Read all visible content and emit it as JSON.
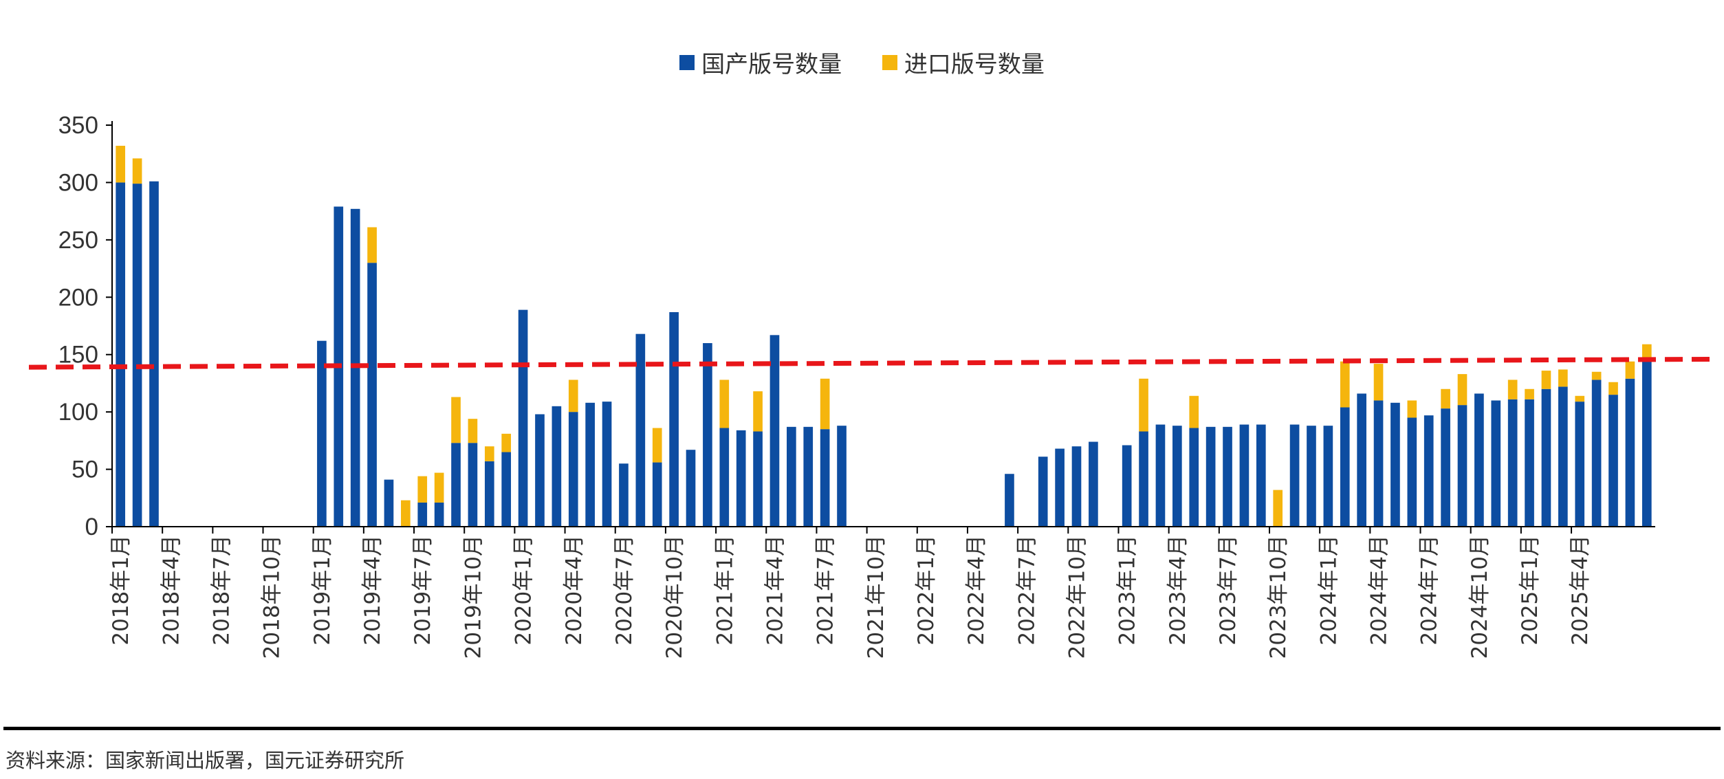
{
  "chart_data": {
    "type": "bar",
    "stacked": true,
    "legend": {
      "position": "top-center"
    },
    "ylim": [
      0,
      350
    ],
    "yticks": [
      0,
      50,
      100,
      150,
      200,
      250,
      300,
      350
    ],
    "reference_line": {
      "start": 139,
      "end": 146,
      "color": "#E8161A",
      "style": "dashed"
    },
    "x_tick_labels": [
      "2018年1月",
      "2018年4月",
      "2018年7月",
      "2018年10月",
      "2019年1月",
      "2019年4月",
      "2019年7月",
      "2019年10月",
      "2020年1月",
      "2020年4月",
      "2020年7月",
      "2020年10月",
      "2021年1月",
      "2021年4月",
      "2021年7月",
      "2021年10月",
      "2022年1月",
      "2022年4月",
      "2022年7月",
      "2022年10月",
      "2023年1月",
      "2023年4月",
      "2023年7月",
      "2023年10月",
      "2024年1月",
      "2024年4月",
      "2024年7月",
      "2024年10月",
      "2025年1月",
      "2025年4月"
    ],
    "series": [
      {
        "name": "国产版号数量",
        "color": "#0D4DA1",
        "values": [
          300,
          299,
          301,
          0,
          0,
          0,
          0,
          0,
          0,
          0,
          0,
          0,
          162,
          279,
          277,
          230,
          41,
          0,
          21,
          21,
          73,
          73,
          57,
          65,
          189,
          98,
          105,
          100,
          108,
          109,
          55,
          168,
          56,
          187,
          67,
          160,
          86,
          84,
          83,
          167,
          87,
          87,
          85,
          88,
          0,
          0,
          0,
          0,
          0,
          0,
          0,
          0,
          0,
          46,
          0,
          61,
          68,
          70,
          74,
          0,
          71,
          83,
          89,
          88,
          86,
          87,
          87,
          89,
          89,
          0,
          89,
          88,
          88,
          104,
          116,
          110,
          108,
          95,
          97,
          103,
          106,
          116,
          110,
          111,
          111,
          120,
          122,
          109,
          128,
          115,
          129,
          145
        ]
      },
      {
        "name": "进口版号数量",
        "color": "#F5B50D",
        "values": [
          32,
          22,
          0,
          0,
          0,
          0,
          0,
          0,
          0,
          0,
          0,
          0,
          0,
          0,
          0,
          31,
          0,
          23,
          23,
          26,
          40,
          21,
          13,
          16,
          0,
          0,
          0,
          28,
          0,
          0,
          0,
          0,
          30,
          0,
          0,
          0,
          42,
          0,
          35,
          0,
          0,
          0,
          44,
          0,
          0,
          0,
          0,
          0,
          0,
          0,
          0,
          0,
          0,
          0,
          0,
          0,
          0,
          0,
          0,
          0,
          0,
          46,
          0,
          0,
          28,
          0,
          0,
          0,
          0,
          32,
          0,
          0,
          0,
          40,
          0,
          32,
          0,
          15,
          0,
          17,
          27,
          0,
          0,
          17,
          9,
          16,
          15,
          5,
          7,
          11,
          15,
          14
        ]
      }
    ]
  },
  "footer": {
    "source": "资料来源：国家新闻出版署，国元证券研究所"
  }
}
